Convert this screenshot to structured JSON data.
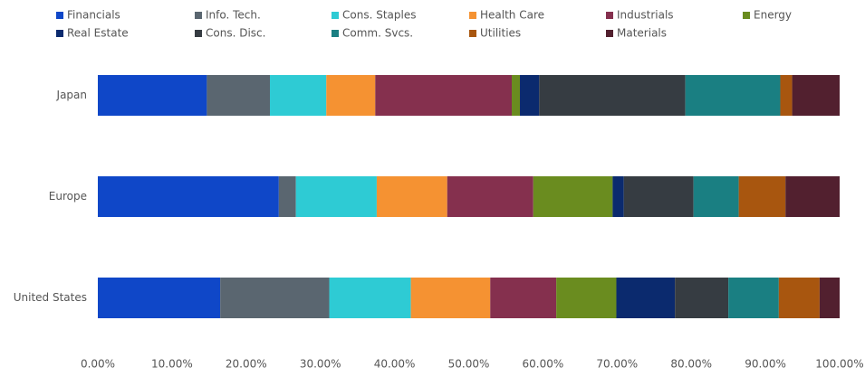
{
  "chart_data": {
    "type": "stacked_barh",
    "categories": [
      "Japan",
      "Europe",
      "United States"
    ],
    "series": [
      {
        "name": "Financials",
        "color": "#0f47c8",
        "values": [
          14.7,
          24.4,
          16.5
        ]
      },
      {
        "name": "Info. Tech.",
        "color": "#5a6670",
        "values": [
          8.5,
          2.3,
          14.7
        ]
      },
      {
        "name": "Cons. Staples",
        "color": "#2ecbd4",
        "values": [
          7.6,
          10.9,
          11.0
        ]
      },
      {
        "name": "Health Care",
        "color": "#f59232",
        "values": [
          6.6,
          9.5,
          10.7
        ]
      },
      {
        "name": "Industrials",
        "color": "#85304e",
        "values": [
          18.4,
          11.6,
          8.9
        ]
      },
      {
        "name": "Energy",
        "color": "#6a8c1f",
        "values": [
          1.1,
          10.7,
          8.1
        ]
      },
      {
        "name": "Real Estate",
        "color": "#0b2a6e",
        "values": [
          2.6,
          1.5,
          7.9
        ]
      },
      {
        "name": "Cons. Disc.",
        "color": "#363c42",
        "values": [
          19.7,
          9.4,
          7.2
        ]
      },
      {
        "name": "Comm. Svcs.",
        "color": "#1a7f82",
        "values": [
          12.8,
          6.1,
          6.8
        ]
      },
      {
        "name": "Utilities",
        "color": "#a8560f",
        "values": [
          1.6,
          6.3,
          5.5
        ]
      },
      {
        "name": "Materials",
        "color": "#52202f",
        "values": [
          6.4,
          7.3,
          2.7
        ]
      }
    ],
    "xlim": [
      0,
      100
    ],
    "xticks": [
      {
        "value": 0,
        "label": "0.00%"
      },
      {
        "value": 10,
        "label": "10.00%"
      },
      {
        "value": 20,
        "label": "20.00%"
      },
      {
        "value": 30,
        "label": "30.00%"
      },
      {
        "value": 40,
        "label": "40.00%"
      },
      {
        "value": 50,
        "label": "50.00%"
      },
      {
        "value": 60,
        "label": "60.00%"
      },
      {
        "value": 70,
        "label": "70.00%"
      },
      {
        "value": 80,
        "label": "80.00%"
      },
      {
        "value": 90,
        "label": "90.00%"
      },
      {
        "value": 100,
        "label": "100.00%"
      }
    ],
    "legend": "top"
  }
}
